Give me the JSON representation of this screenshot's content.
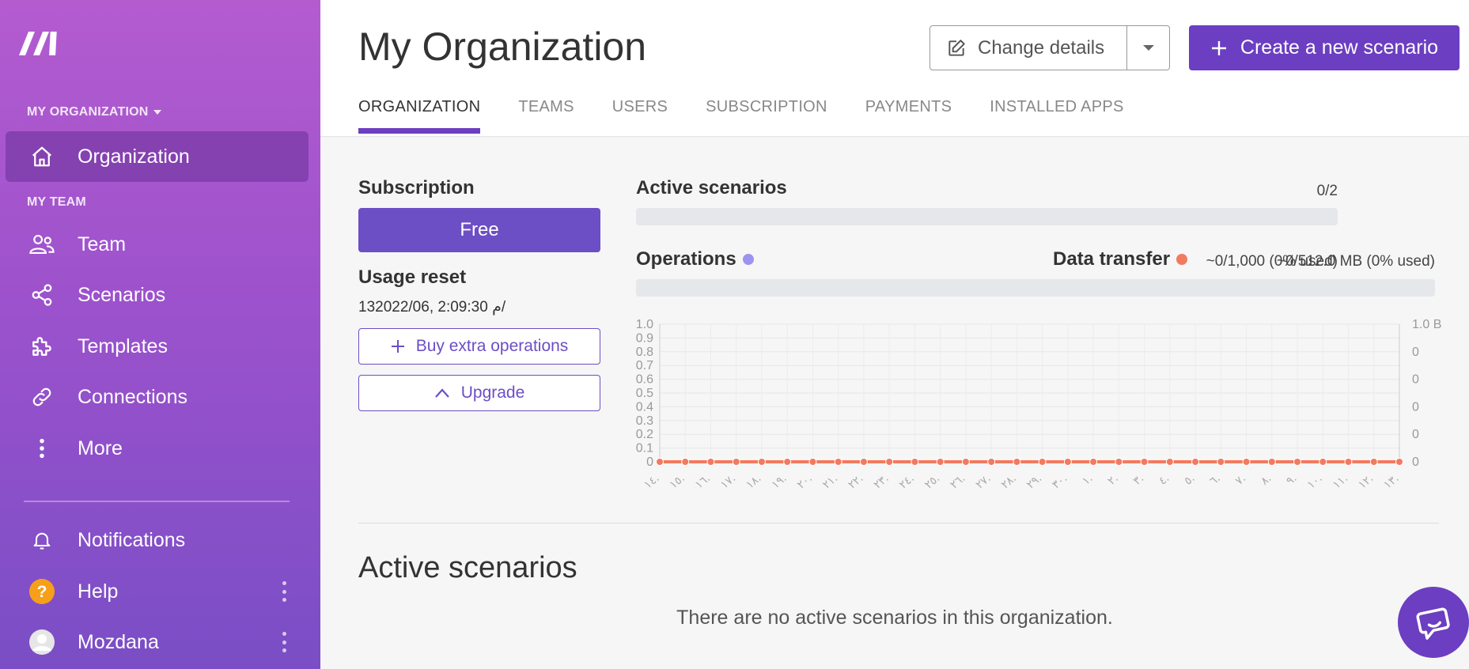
{
  "sidebar": {
    "logo_icon": "make-logo-icon",
    "org_label": "MY ORGANIZATION",
    "team_label": "MY TEAM",
    "items": [
      {
        "label": "Organization",
        "icon": "home-icon",
        "active": true
      },
      {
        "label": "Team",
        "icon": "users-icon"
      },
      {
        "label": "Scenarios",
        "icon": "share-nodes-icon"
      },
      {
        "label": "Templates",
        "icon": "puzzle-icon"
      },
      {
        "label": "Connections",
        "icon": "link-icon"
      },
      {
        "label": "More",
        "icon": "more-vertical-icon"
      }
    ],
    "bottom_items": [
      {
        "label": "Notifications",
        "icon": "bell-icon"
      },
      {
        "label": "Help",
        "icon": "help-icon"
      },
      {
        "label": "Mozdana",
        "icon": "avatar-icon"
      }
    ]
  },
  "header": {
    "title": "My Organization",
    "change_details": "Change details",
    "create_scenario": "Create a new scenario",
    "tabs": [
      "ORGANIZATION",
      "TEAMS",
      "USERS",
      "SUBSCRIPTION",
      "PAYMENTS",
      "INSTALLED APPS"
    ],
    "active_tab": "ORGANIZATION"
  },
  "subscription": {
    "title": "Subscription",
    "plan": "Free",
    "usage_reset_title": "Usage reset",
    "usage_reset_value": "13م 2:09:30 ,2022/06/",
    "buy_extra": "Buy extra operations",
    "upgrade": "Upgrade"
  },
  "metrics": {
    "active_scenarios": {
      "title": "Active scenarios",
      "value": "0/2",
      "fraction": 0
    },
    "operations": {
      "title": "Operations",
      "value": "~0/1,000 (0% used)",
      "fraction": 0,
      "dot_color": "#9b93f0"
    },
    "data_transfer": {
      "title": "Data transfer",
      "value": "~0/512.0 MB (0% used)",
      "fraction": 0,
      "dot_color": "#f27a5e"
    }
  },
  "chart_data": {
    "type": "line",
    "left_axis": [
      "0",
      "0.1",
      "0.2",
      "0.3",
      "0.4",
      "0.5",
      "0.6",
      "0.7",
      "0.8",
      "0.9",
      "1.0"
    ],
    "right_axis": [
      "0",
      "0",
      "0",
      "0",
      "0",
      "1.0 B"
    ],
    "ylim": [
      0,
      1
    ],
    "categories": [
      "١٤.",
      "١٥.",
      "١٦.",
      "١٧.",
      "١٨.",
      "١٩.",
      "٢٠.",
      "٢١.",
      "٢٢.",
      "٢٣.",
      "٢٤.",
      "٢٥.",
      "٢٦.",
      "٢٧.",
      "٢٨.",
      "٢٩.",
      "٣٠.",
      "١.",
      "٢.",
      "٣.",
      "٤.",
      "٥.",
      "٦.",
      "٧.",
      "٨.",
      "٩.",
      "١٠.",
      "١١.",
      "١٢.",
      "١٣."
    ],
    "series": [
      {
        "color": "#9b93f0",
        "values": [
          0,
          0,
          0,
          0,
          0,
          0,
          0,
          0,
          0,
          0,
          0,
          0,
          0,
          0,
          0,
          0,
          0,
          0,
          0,
          0,
          0,
          0,
          0,
          0,
          0,
          0,
          0,
          0,
          0,
          0
        ]
      },
      {
        "color": "#f27a5e",
        "values": [
          0,
          0,
          0,
          0,
          0,
          0,
          0,
          0,
          0,
          0,
          0,
          0,
          0,
          0,
          0,
          0,
          0,
          0,
          0,
          0,
          0,
          0,
          0,
          0,
          0,
          0,
          0,
          0,
          0,
          0
        ]
      }
    ]
  },
  "active_section": {
    "title": "Active scenarios",
    "empty": "There are no active scenarios in this organization."
  },
  "colors": {
    "accent": "#6c3ec1",
    "sidebar_top": "#b45bd0",
    "sidebar_bottom": "#7a4ec6"
  }
}
